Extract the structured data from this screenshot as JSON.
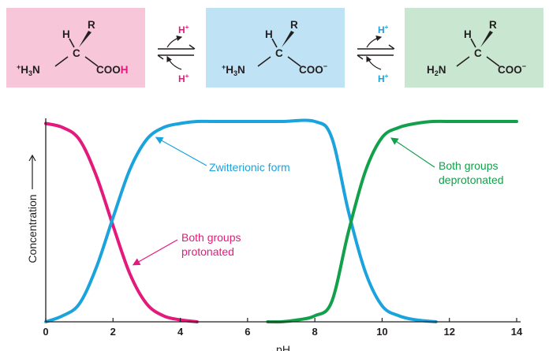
{
  "structures": [
    {
      "box_color": "#f7c6d9",
      "R": "R",
      "H": "H",
      "C": "C",
      "amino": [
        "+",
        "H",
        "3",
        "N"
      ],
      "acid": [
        "COO",
        "H"
      ],
      "acid_highlight_color": "#e4197c"
    },
    {
      "box_color": "#bfe2f5",
      "R": "R",
      "H": "H",
      "C": "C",
      "amino": [
        "+",
        "H",
        "3",
        "N"
      ],
      "acid": [
        "COO",
        "−"
      ]
    },
    {
      "box_color": "#c8e6d0",
      "R": "R",
      "H": "H",
      "C": "C",
      "amino": [
        "",
        "H",
        "2",
        "N"
      ],
      "acid": [
        "COO",
        "−"
      ]
    }
  ],
  "equilibria": [
    {
      "top": [
        "H",
        "+"
      ],
      "bottom": [
        "H",
        "+"
      ],
      "color": "#e4197c"
    },
    {
      "top": [
        "H",
        "+"
      ],
      "bottom": [
        "H",
        "+"
      ],
      "color": "#1ba3de"
    }
  ],
  "chart_data": {
    "type": "line",
    "xlabel": "pH",
    "ylabel": "Concentration",
    "xlim": [
      0,
      14
    ],
    "ylim": [
      0,
      1
    ],
    "x_ticks": [
      "0",
      "2",
      "4",
      "6",
      "8",
      "10",
      "12",
      "14"
    ],
    "series": [
      {
        "color": "#e4197c",
        "x": [
          0,
          0.5,
          1,
          1.5,
          2,
          2.5,
          3,
          3.5,
          4,
          4.5
        ],
        "y": [
          0.99,
          0.97,
          0.91,
          0.73,
          0.48,
          0.24,
          0.09,
          0.03,
          0.01,
          0.0
        ]
      },
      {
        "color": "#1ba3de",
        "x": [
          0,
          0.5,
          1,
          1.5,
          2,
          2.5,
          3,
          3.5,
          4,
          4.5,
          5,
          6,
          7,
          8,
          8.5,
          9,
          9.5,
          10,
          10.5,
          11,
          11.6
        ],
        "y": [
          0.0,
          0.03,
          0.09,
          0.27,
          0.52,
          0.76,
          0.91,
          0.97,
          0.99,
          1.0,
          1.0,
          1.0,
          1.0,
          1.0,
          0.92,
          0.55,
          0.25,
          0.08,
          0.03,
          0.01,
          0.0
        ]
      },
      {
        "color": "#12a04b",
        "x": [
          6.6,
          7,
          7.5,
          8,
          8.5,
          9,
          9.5,
          10,
          10.5,
          11,
          11.5,
          12,
          13,
          14
        ],
        "y": [
          0.0,
          0.0,
          0.01,
          0.03,
          0.1,
          0.45,
          0.75,
          0.92,
          0.97,
          0.99,
          1.0,
          1.0,
          1.0,
          1.0
        ]
      }
    ],
    "annotations": [
      {
        "lines": [
          "Zwitterionic form"
        ],
        "color": "#1ba3de"
      },
      {
        "lines": [
          "Both groups",
          "deprotonated"
        ],
        "color": "#12a04b"
      },
      {
        "lines": [
          "Both groups",
          "protonated"
        ],
        "color": "#e4197c"
      }
    ]
  }
}
